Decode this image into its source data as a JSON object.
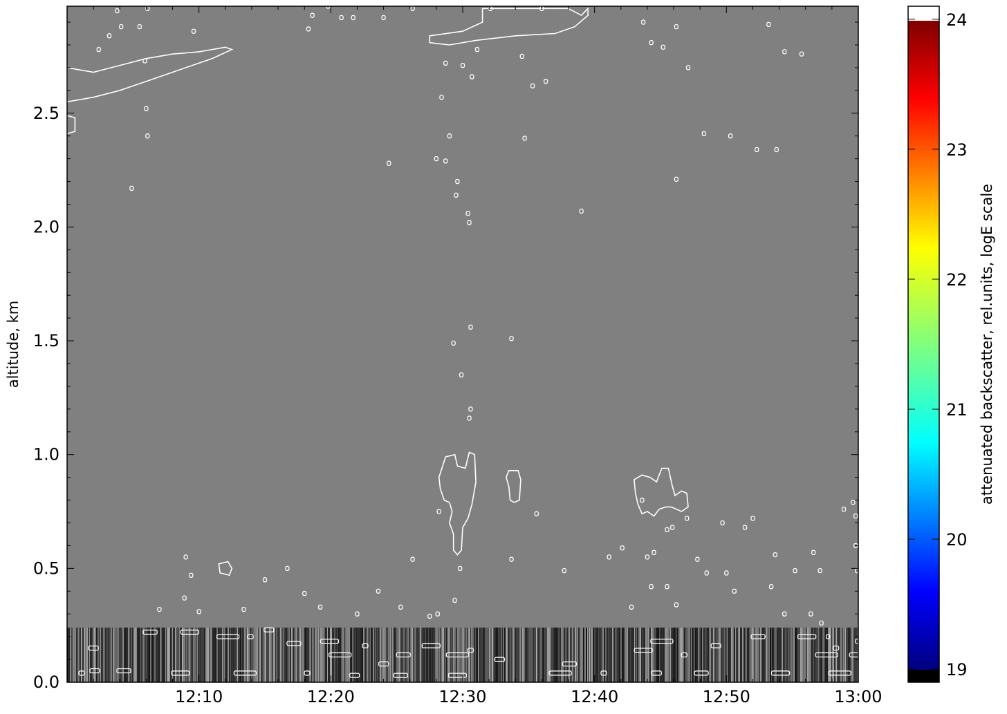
{
  "chart_data": {
    "type": "heatmap",
    "title": "",
    "xlabel": "",
    "ylabel": "altitude, km",
    "x_range": [
      "12:00",
      "13:00"
    ],
    "x_ticks": [
      "12:10",
      "12:20",
      "12:30",
      "12:40",
      "12:50",
      "13:00"
    ],
    "x_tick_minutes": [
      10,
      20,
      30,
      40,
      50,
      60
    ],
    "y_range": [
      0.0,
      2.97
    ],
    "y_ticks": [
      "0.0",
      "0.5",
      "1.0",
      "1.5",
      "2.0",
      "2.5"
    ],
    "y_tick_values": [
      0.0,
      0.5,
      1.0,
      1.5,
      2.0,
      2.5
    ],
    "grid": false,
    "background_color": "#808080",
    "contour_color": "#ffffff",
    "near_surface_noise_top_km": 0.24,
    "colorbar": {
      "label": "attenuated backscatter, rel.units, logE scale",
      "ticks": [
        "19",
        "20",
        "21",
        "22",
        "23",
        "24"
      ],
      "tick_values": [
        19,
        20,
        21,
        22,
        23,
        24
      ],
      "range": [
        18.9,
        24.1
      ],
      "colormap": "jet",
      "under_color": "#000000",
      "over_color": "#ffffff"
    },
    "contour_regions": [
      {
        "kind": "cloud-band",
        "points": [
          [
            0.0,
            2.7
          ],
          [
            2.0,
            2.68
          ],
          [
            4.0,
            2.71
          ],
          [
            6.0,
            2.74
          ],
          [
            8.0,
            2.76
          ],
          [
            10.0,
            2.77
          ],
          [
            12.0,
            2.79
          ],
          [
            12.5,
            2.78
          ],
          [
            11.0,
            2.74
          ],
          [
            10.0,
            2.72
          ],
          [
            8.0,
            2.68
          ],
          [
            6.0,
            2.64
          ],
          [
            4.0,
            2.6
          ],
          [
            2.0,
            2.57
          ],
          [
            0.0,
            2.55
          ]
        ]
      },
      {
        "kind": "cloud-band",
        "points": [
          [
            27.5,
            2.84
          ],
          [
            30.0,
            2.86
          ],
          [
            31.5,
            2.9
          ],
          [
            31.5,
            2.96
          ],
          [
            38.0,
            2.96
          ],
          [
            39.0,
            2.93
          ],
          [
            39.5,
            2.96
          ],
          [
            39.5,
            2.93
          ],
          [
            38.5,
            2.88
          ],
          [
            37.0,
            2.85
          ],
          [
            34.0,
            2.84
          ],
          [
            31.0,
            2.82
          ],
          [
            29.0,
            2.8
          ],
          [
            27.5,
            2.81
          ]
        ]
      },
      {
        "kind": "cloud",
        "points": [
          [
            28.2,
            0.9
          ],
          [
            28.7,
            0.99
          ],
          [
            29.4,
            1.0
          ],
          [
            29.6,
            0.95
          ],
          [
            30.2,
            0.94
          ],
          [
            30.5,
            1.01
          ],
          [
            30.9,
            1.0
          ],
          [
            31.0,
            0.88
          ],
          [
            30.7,
            0.78
          ],
          [
            30.4,
            0.72
          ],
          [
            30.0,
            0.68
          ],
          [
            29.9,
            0.58
          ],
          [
            29.6,
            0.56
          ],
          [
            29.3,
            0.58
          ],
          [
            29.3,
            0.65
          ],
          [
            29.0,
            0.7
          ],
          [
            29.2,
            0.75
          ],
          [
            29.0,
            0.79
          ],
          [
            28.6,
            0.8
          ],
          [
            28.3,
            0.85
          ]
        ]
      },
      {
        "kind": "cloud",
        "points": [
          [
            33.3,
            0.9
          ],
          [
            33.5,
            0.93
          ],
          [
            34.2,
            0.93
          ],
          [
            34.4,
            0.89
          ],
          [
            34.3,
            0.8
          ],
          [
            33.9,
            0.79
          ],
          [
            33.6,
            0.8
          ],
          [
            33.5,
            0.86
          ]
        ]
      },
      {
        "kind": "cloud",
        "points": [
          [
            43.0,
            0.89
          ],
          [
            43.6,
            0.91
          ],
          [
            44.2,
            0.9
          ],
          [
            44.7,
            0.88
          ],
          [
            45.1,
            0.94
          ],
          [
            45.6,
            0.94
          ],
          [
            45.9,
            0.86
          ],
          [
            46.1,
            0.82
          ],
          [
            46.6,
            0.84
          ],
          [
            47.0,
            0.83
          ],
          [
            47.1,
            0.77
          ],
          [
            46.6,
            0.75
          ],
          [
            45.8,
            0.77
          ],
          [
            45.4,
            0.77
          ],
          [
            44.9,
            0.76
          ],
          [
            44.5,
            0.73
          ],
          [
            44.0,
            0.75
          ],
          [
            43.6,
            0.74
          ],
          [
            43.3,
            0.78
          ],
          [
            43.1,
            0.83
          ]
        ]
      },
      {
        "kind": "cloud",
        "points": [
          [
            11.5,
            0.52
          ],
          [
            12.2,
            0.53
          ],
          [
            12.5,
            0.5
          ],
          [
            12.3,
            0.47
          ],
          [
            11.6,
            0.48
          ]
        ]
      },
      {
        "kind": "cloud",
        "points": [
          [
            0.0,
            2.49
          ],
          [
            0.6,
            2.48
          ],
          [
            0.6,
            2.42
          ],
          [
            0.0,
            2.41
          ]
        ]
      }
    ],
    "speckles": [
      [
        6.1,
        2.96
      ],
      [
        3.8,
        2.95
      ],
      [
        4.1,
        2.88
      ],
      [
        5.5,
        2.88
      ],
      [
        3.2,
        2.84
      ],
      [
        2.4,
        2.78
      ],
      [
        5.9,
        2.73
      ],
      [
        9.6,
        2.86
      ],
      [
        6.0,
        2.52
      ],
      [
        6.1,
        2.4
      ],
      [
        4.9,
        2.17
      ],
      [
        19.8,
        2.97
      ],
      [
        18.6,
        2.93
      ],
      [
        20.8,
        2.92
      ],
      [
        18.3,
        2.87
      ],
      [
        26.2,
        2.96
      ],
      [
        21.7,
        2.92
      ],
      [
        24.0,
        2.92
      ],
      [
        32.1,
        2.96
      ],
      [
        36.0,
        2.96
      ],
      [
        43.7,
        2.9
      ],
      [
        46.2,
        2.88
      ],
      [
        53.2,
        2.89
      ],
      [
        45.2,
        2.79
      ],
      [
        44.3,
        2.81
      ],
      [
        54.4,
        2.77
      ],
      [
        47.1,
        2.7
      ],
      [
        55.7,
        2.76
      ],
      [
        34.5,
        2.75
      ],
      [
        35.3,
        2.62
      ],
      [
        36.3,
        2.64
      ],
      [
        50.3,
        2.4
      ],
      [
        48.3,
        2.41
      ],
      [
        52.3,
        2.34
      ],
      [
        53.8,
        2.34
      ],
      [
        34.7,
        2.39
      ],
      [
        46.2,
        2.21
      ],
      [
        39.0,
        2.07
      ],
      [
        24.4,
        2.28
      ],
      [
        28.4,
        2.57
      ],
      [
        28.7,
        2.72
      ],
      [
        31.1,
        2.78
      ],
      [
        30.0,
        2.71
      ],
      [
        30.7,
        2.66
      ],
      [
        29.0,
        2.4
      ],
      [
        28.0,
        2.3
      ],
      [
        28.7,
        2.29
      ],
      [
        29.6,
        2.2
      ],
      [
        30.4,
        2.06
      ],
      [
        29.5,
        2.14
      ],
      [
        30.5,
        2.02
      ],
      [
        30.6,
        1.56
      ],
      [
        29.3,
        1.49
      ],
      [
        29.9,
        1.35
      ],
      [
        30.6,
        1.2
      ],
      [
        30.5,
        1.16
      ],
      [
        33.7,
        1.51
      ],
      [
        35.6,
        0.74
      ],
      [
        29.8,
        0.5
      ],
      [
        28.2,
        0.75
      ],
      [
        26.2,
        0.54
      ],
      [
        33.7,
        0.54
      ],
      [
        37.7,
        0.49
      ],
      [
        9.0,
        0.55
      ],
      [
        9.4,
        0.47
      ],
      [
        8.9,
        0.37
      ],
      [
        7.0,
        0.32
      ],
      [
        10.0,
        0.31
      ],
      [
        13.4,
        0.32
      ],
      [
        15.0,
        0.45
      ],
      [
        16.7,
        0.5
      ],
      [
        18.0,
        0.39
      ],
      [
        19.2,
        0.33
      ],
      [
        22.0,
        0.3
      ],
      [
        23.6,
        0.4
      ],
      [
        25.3,
        0.33
      ],
      [
        27.5,
        0.29
      ],
      [
        29.4,
        0.36
      ],
      [
        28.1,
        0.3
      ],
      [
        41.1,
        0.55
      ],
      [
        42.1,
        0.59
      ],
      [
        44.0,
        0.55
      ],
      [
        44.5,
        0.57
      ],
      [
        47.8,
        0.54
      ],
      [
        48.5,
        0.48
      ],
      [
        50.0,
        0.48
      ],
      [
        50.6,
        0.4
      ],
      [
        51.4,
        0.68
      ],
      [
        49.7,
        0.7
      ],
      [
        52.0,
        0.72
      ],
      [
        47.0,
        0.72
      ],
      [
        45.9,
        0.68
      ],
      [
        45.5,
        0.67
      ],
      [
        43.6,
        0.8
      ],
      [
        42.8,
        0.33
      ],
      [
        44.3,
        0.42
      ],
      [
        45.5,
        0.42
      ],
      [
        46.2,
        0.34
      ],
      [
        53.7,
        0.56
      ],
      [
        56.6,
        0.57
      ],
      [
        57.1,
        0.49
      ],
      [
        54.4,
        0.3
      ],
      [
        56.4,
        0.3
      ],
      [
        57.2,
        0.26
      ],
      [
        59.8,
        0.6
      ],
      [
        59.9,
        0.49
      ],
      [
        59.8,
        0.73
      ],
      [
        59.6,
        0.79
      ],
      [
        58.9,
        0.76
      ],
      [
        57.7,
        0.2
      ],
      [
        53.4,
        0.42
      ],
      [
        55.2,
        0.49
      ]
    ],
    "near_surface_contours": [
      [
        1.1,
        0.04
      ],
      [
        2.1,
        0.05
      ],
      [
        4.3,
        0.05
      ],
      [
        8.6,
        0.04
      ],
      [
        13.5,
        0.04
      ],
      [
        18.2,
        0.04
      ],
      [
        21.8,
        0.03
      ],
      [
        25.3,
        0.03
      ],
      [
        29.6,
        0.03
      ],
      [
        37.4,
        0.04
      ],
      [
        40.7,
        0.04
      ],
      [
        44.7,
        0.04
      ],
      [
        48.1,
        0.04
      ],
      [
        54.1,
        0.04
      ],
      [
        58.6,
        0.04
      ],
      [
        62.4,
        0.04
      ],
      [
        2.0,
        0.15
      ],
      [
        6.3,
        0.22
      ],
      [
        9.3,
        0.22
      ],
      [
        12.2,
        0.2
      ],
      [
        13.9,
        0.2
      ],
      [
        15.3,
        0.23
      ],
      [
        17.2,
        0.17
      ],
      [
        19.9,
        0.18
      ],
      [
        20.7,
        0.12
      ],
      [
        22.6,
        0.16
      ],
      [
        24.0,
        0.08
      ],
      [
        25.5,
        0.12
      ],
      [
        27.6,
        0.16
      ],
      [
        29.6,
        0.12
      ],
      [
        30.6,
        0.14
      ],
      [
        32.8,
        0.1
      ],
      [
        38.1,
        0.08
      ],
      [
        43.7,
        0.14
      ],
      [
        45.1,
        0.18
      ],
      [
        46.8,
        0.12
      ],
      [
        49.2,
        0.16
      ],
      [
        52.4,
        0.2
      ],
      [
        56.1,
        0.2
      ],
      [
        57.6,
        0.12
      ],
      [
        58.3,
        0.15
      ],
      [
        59.7,
        0.12
      ],
      [
        60.3,
        0.18
      ],
      [
        61.1,
        0.06
      ],
      [
        62.8,
        0.14
      ],
      [
        63.6,
        0.09
      ]
    ]
  }
}
